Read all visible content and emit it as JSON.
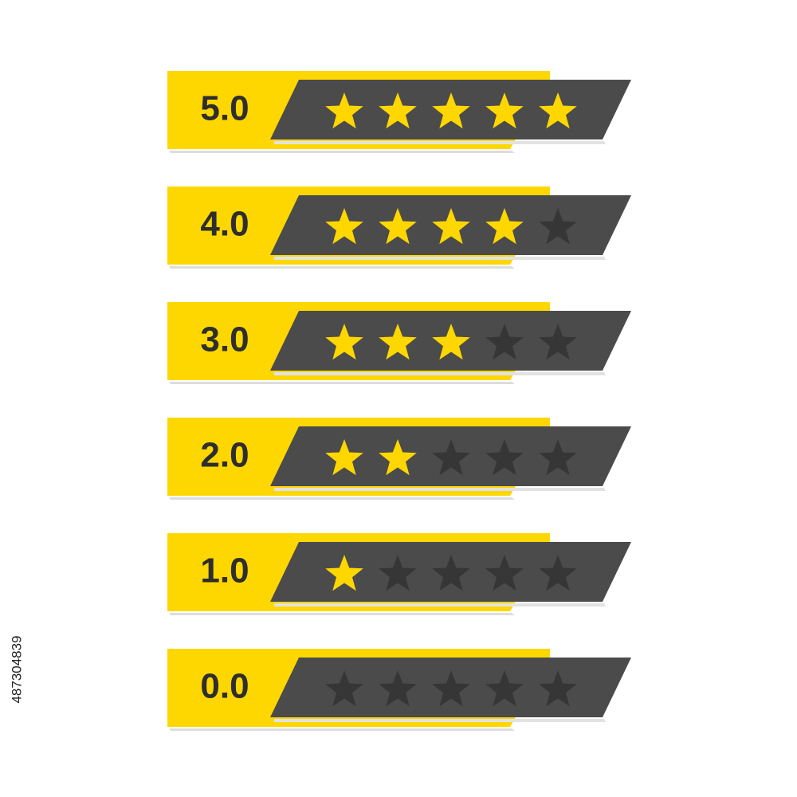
{
  "scale_max": 5,
  "ratings": [
    {
      "value": 5,
      "label": "5.0"
    },
    {
      "value": 4,
      "label": "4.0"
    },
    {
      "value": 3,
      "label": "3.0"
    },
    {
      "value": 2,
      "label": "2.0"
    },
    {
      "value": 1,
      "label": "1.0"
    },
    {
      "value": 0,
      "label": "0.0"
    }
  ],
  "side_text": "487304839"
}
